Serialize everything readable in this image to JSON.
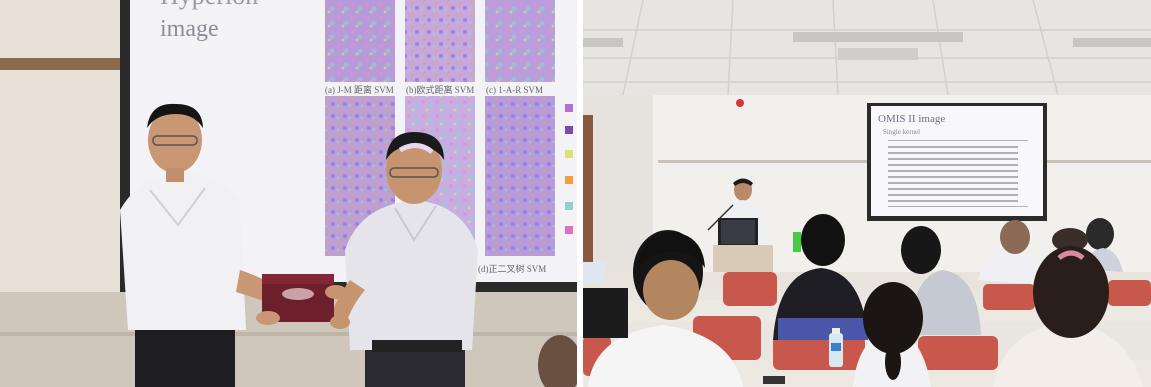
{
  "left_photo": {
    "slide_partial_title": "Hyperion",
    "slide_subtitle": "image",
    "captions": [
      "(a) J-M 距离 SVM",
      "(b)欧式距离 SVM",
      "(c) 1-A-R SVM",
      "(d)正二叉树 SVM"
    ]
  },
  "right_photo": {
    "slide_title": "OMIS II image",
    "slide_subtitle": "Single kernel",
    "table_rows": 10
  }
}
